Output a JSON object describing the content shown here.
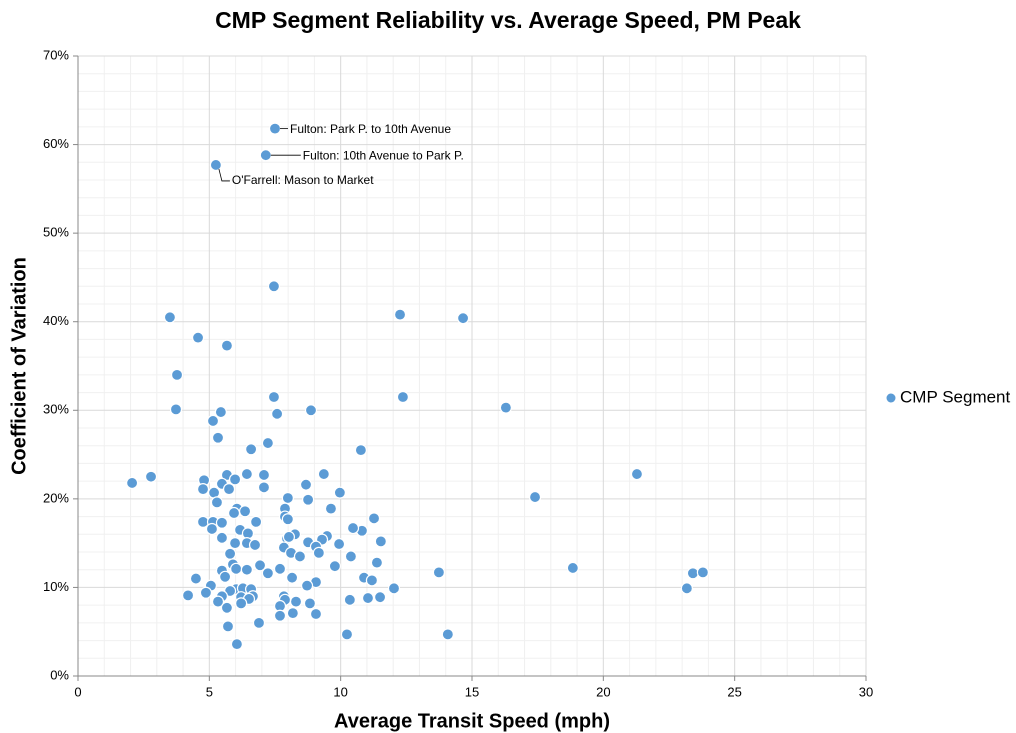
{
  "chart_data": {
    "type": "scatter",
    "title": "CMP Segment Reliability vs. Average Speed, PM Peak",
    "x_label": "Average Transit Speed (mph)",
    "y_label": "Coefficient of Variation",
    "xlim": [
      0,
      30
    ],
    "xticks": [
      0,
      5,
      10,
      15,
      20,
      25,
      30
    ],
    "ylim": [
      0,
      70
    ],
    "yticks": [
      {
        "value": 0,
        "label": "0%"
      },
      {
        "value": 10,
        "label": "10%"
      },
      {
        "value": 20,
        "label": "20%"
      },
      {
        "value": 30,
        "label": "30%"
      },
      {
        "value": 40,
        "label": "40%"
      },
      {
        "value": 50,
        "label": "50%"
      },
      {
        "value": 60,
        "label": "60%"
      },
      {
        "value": 70,
        "label": "70%"
      }
    ],
    "grid": true,
    "legend": "right",
    "annotations": [
      {
        "text": "Fulton: Park P. to 10th Avenue",
        "x": 7.5,
        "y": 61.8
      },
      {
        "text": "Fulton: 10th Avenue to Park P.",
        "x": 7.15,
        "y": 58.8
      },
      {
        "text": "O'Farrell: Mason to Market",
        "x": 5.25,
        "y": 57.7
      }
    ],
    "series": [
      {
        "name": "CMP Segment",
        "color": "#5b9bd5",
        "x": [
          7.5,
          7.15,
          5.25,
          7.46,
          3.5,
          12.26,
          14.66,
          4.57,
          5.67,
          3.77,
          7.46,
          12.37,
          3.73,
          5.44,
          5.14,
          7.58,
          8.87,
          16.29,
          5.33,
          7.23,
          6.59,
          10.77,
          2.06,
          2.78,
          4.8,
          5.67,
          5.98,
          6.43,
          7.08,
          9.36,
          21.28,
          4.76,
          5.48,
          5.75,
          7.08,
          8.68,
          5.18,
          5.29,
          7.99,
          9.97,
          17.4,
          8.76,
          6.05,
          6.36,
          5.94,
          7.88,
          9.63,
          7.88,
          7.99,
          11.27,
          4.76,
          5.14,
          5.48,
          6.78,
          10.81,
          10.47,
          6.17,
          5.1,
          6.47,
          8.26,
          9.48,
          7.96,
          8.03,
          11.53,
          5.48,
          5.98,
          6.43,
          6.74,
          8.76,
          9.29,
          9.94,
          7.84,
          9.06,
          9.17,
          8.11,
          8.45,
          10.39,
          5.79,
          5.9,
          6.93,
          11.38,
          9.78,
          18.84,
          6.02,
          6.43,
          7.69,
          5.48,
          7.23,
          13.74,
          23.41,
          23.79,
          4.49,
          8.15,
          5.6,
          10.89,
          11.19,
          9.06,
          5.06,
          8.72,
          12.03,
          23.18,
          6.02,
          6.28,
          6.59,
          5.79,
          4.19,
          4.87,
          5.48,
          6.66,
          6.21,
          6.51,
          7.84,
          7.88,
          10.35,
          11.04,
          11.5,
          5.33,
          6.21,
          8.3,
          8.83,
          5.67,
          7.69,
          8.18,
          9.06,
          7.69,
          6.89,
          5.71,
          10.24,
          14.08,
          6.05
        ],
        "values": [
          61.8,
          58.8,
          57.7,
          44.0,
          40.5,
          40.8,
          40.4,
          38.2,
          37.3,
          34.0,
          31.5,
          31.5,
          30.1,
          29.8,
          28.8,
          29.6,
          30.0,
          30.3,
          26.9,
          26.3,
          25.6,
          25.5,
          21.8,
          22.5,
          22.1,
          22.7,
          22.2,
          22.8,
          22.7,
          22.8,
          22.8,
          21.1,
          21.7,
          21.1,
          21.3,
          21.6,
          20.7,
          19.6,
          20.1,
          20.7,
          20.2,
          19.9,
          18.9,
          18.6,
          18.4,
          18.9,
          18.9,
          18.0,
          17.7,
          17.8,
          17.4,
          17.4,
          17.3,
          17.4,
          16.4,
          16.7,
          16.5,
          16.6,
          16.1,
          16.0,
          15.8,
          15.5,
          15.7,
          15.2,
          15.6,
          15.0,
          15.0,
          14.8,
          15.1,
          15.4,
          14.9,
          14.5,
          14.6,
          13.9,
          13.9,
          13.5,
          13.5,
          13.8,
          12.6,
          12.5,
          12.8,
          12.4,
          12.2,
          12.1,
          12.0,
          12.1,
          11.9,
          11.6,
          11.7,
          11.6,
          11.7,
          11.0,
          11.1,
          11.2,
          11.1,
          10.8,
          10.6,
          10.2,
          10.2,
          9.9,
          9.9,
          9.8,
          9.9,
          9.8,
          9.6,
          9.1,
          9.4,
          9.0,
          9.0,
          8.9,
          8.7,
          9.0,
          8.6,
          8.6,
          8.8,
          8.9,
          8.4,
          8.2,
          8.4,
          8.2,
          7.7,
          7.9,
          7.1,
          7.0,
          6.8,
          6.0,
          5.6,
          4.7,
          4.7,
          3.6
        ]
      }
    ]
  }
}
